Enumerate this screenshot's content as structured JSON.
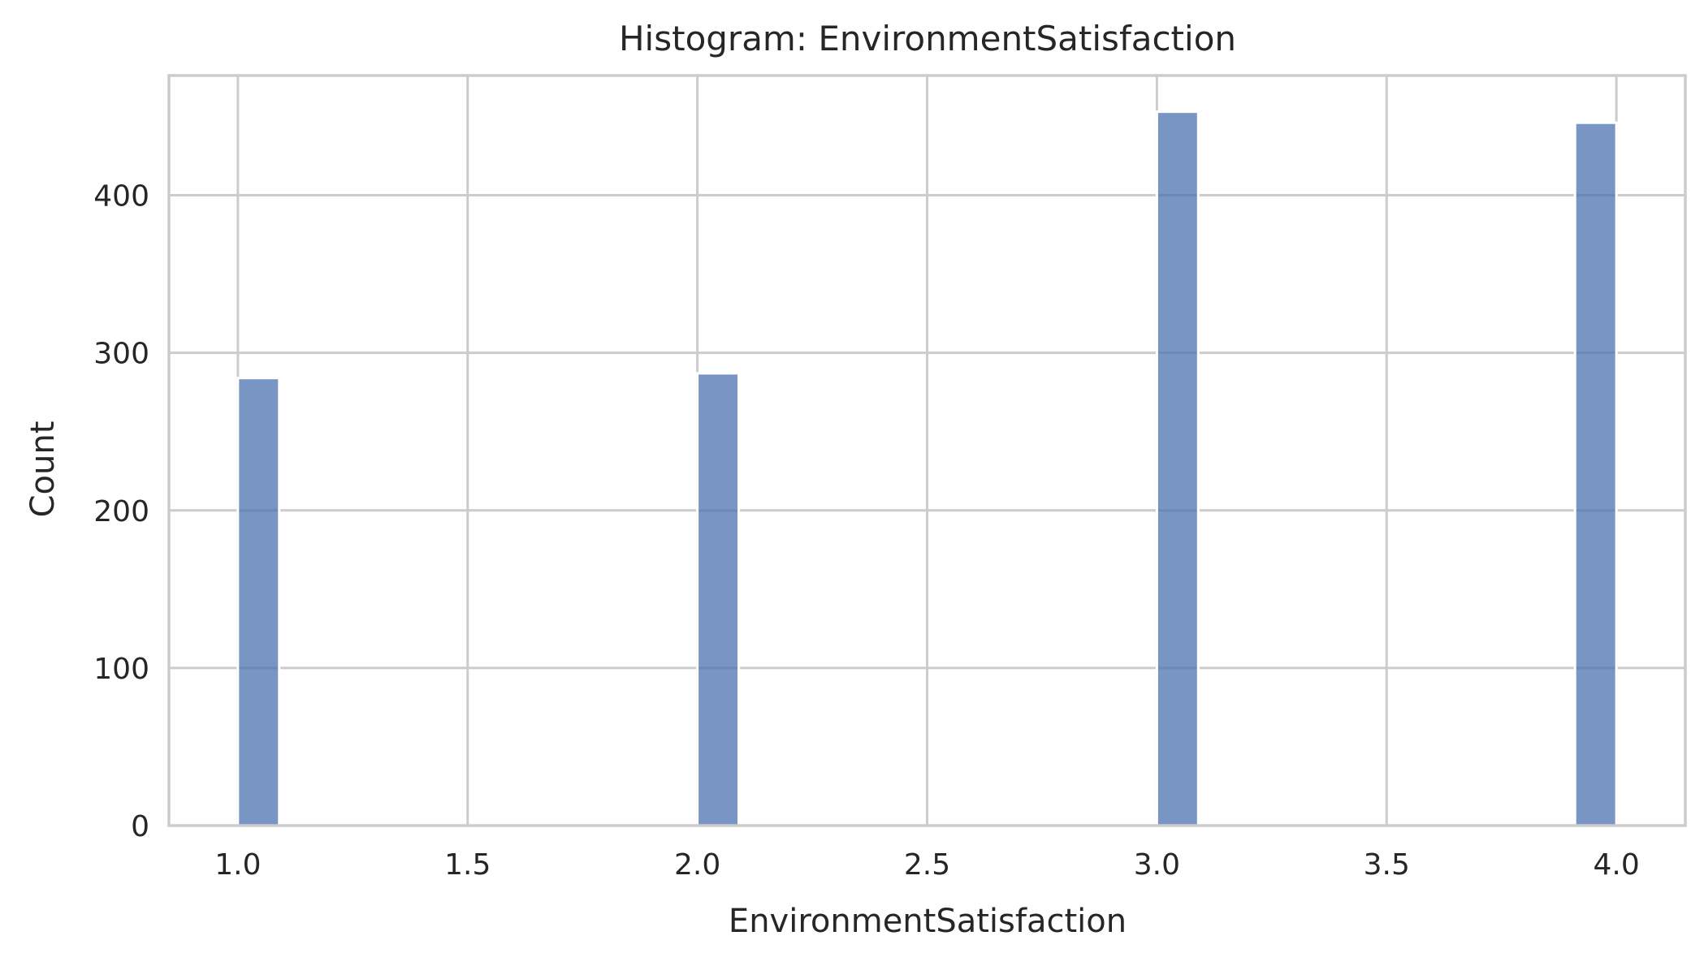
{
  "chart_data": {
    "type": "bar",
    "title": "Histogram: EnvironmentSatisfaction",
    "xlabel": "EnvironmentSatisfaction",
    "ylabel": "Count",
    "xlim": [
      0.85,
      4.15
    ],
    "ylim": [
      0,
      476
    ],
    "x_ticks": [
      1.0,
      1.5,
      2.0,
      2.5,
      3.0,
      3.5,
      4.0
    ],
    "x_tick_labels": [
      "1.0",
      "1.5",
      "2.0",
      "2.5",
      "3.0",
      "3.5",
      "4.0"
    ],
    "y_ticks": [
      0,
      100,
      200,
      300,
      400
    ],
    "y_tick_labels": [
      "0",
      "100",
      "200",
      "300",
      "400"
    ],
    "bin_width": 0.09,
    "grid": true,
    "bar_color": "#4c72b0",
    "bar_opacity": 0.75,
    "bins": [
      {
        "x_start": 1.0,
        "x_end": 1.09,
        "count": 284
      },
      {
        "x_start": 2.0,
        "x_end": 2.09,
        "count": 287
      },
      {
        "x_start": 3.0,
        "x_end": 3.09,
        "count": 453
      },
      {
        "x_start": 3.91,
        "x_end": 4.0,
        "count": 446
      }
    ]
  }
}
